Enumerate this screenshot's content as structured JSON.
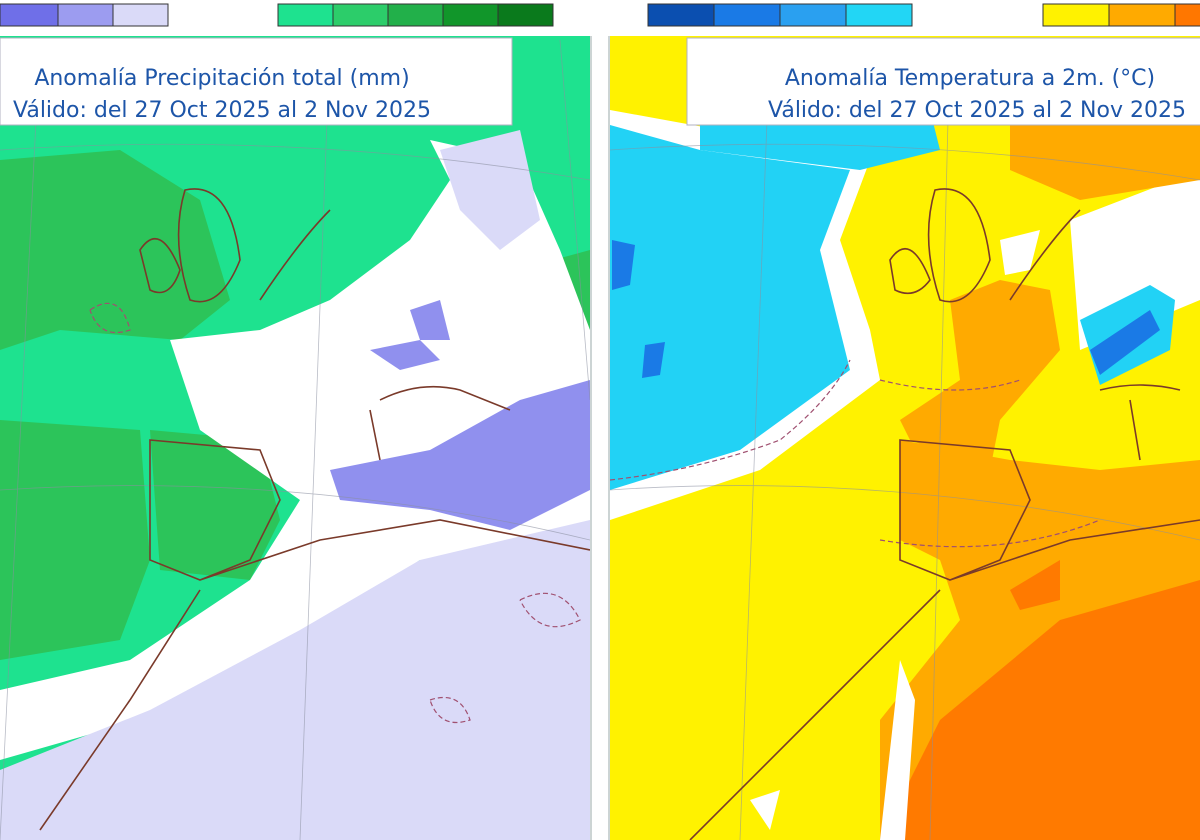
{
  "panels": [
    {
      "title": "Anomalía Precipitación total (mm)",
      "subtitle": "Válido: del 27 Oct 2025 al 2 Nov 2025"
    },
    {
      "title": "Anomalía Temperatura a 2m. (°C)",
      "subtitle": "Válido: del 27 Oct 2025 al 2 Nov 2025"
    }
  ]
}
